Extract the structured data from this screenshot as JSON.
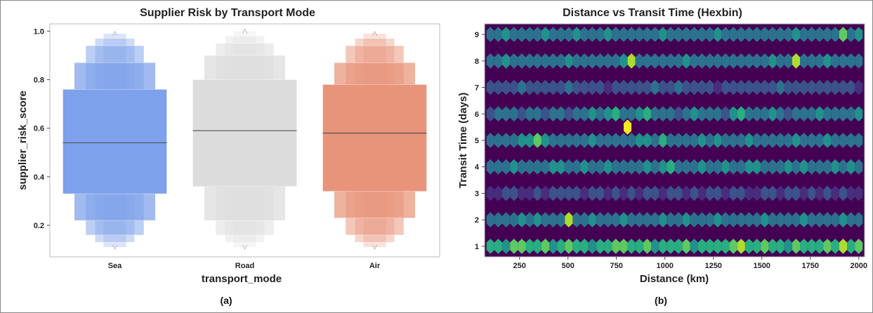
{
  "figure": {
    "captions": [
      "(a)",
      "(b)"
    ]
  },
  "chart_data": [
    {
      "type": "boxen",
      "title": "Supplier Risk by Transport Mode",
      "xlabel": "transport_mode",
      "ylabel": "supplier_risk_score",
      "ylim": [
        0.07,
        1.03
      ],
      "yticks": [
        0.2,
        0.4,
        0.6,
        0.8,
        1.0
      ],
      "ytick_labels": [
        "0.2",
        "0.4",
        "0.6",
        "0.8",
        "1.0"
      ],
      "categories": [
        "Sea",
        "Road",
        "Air"
      ],
      "colors": [
        "#7da1ea",
        "#dcdcdc",
        "#e8947a"
      ],
      "grid": false,
      "series": [
        {
          "category": "Sea",
          "median": 0.54,
          "levels": [
            {
              "lower": 0.33,
              "upper": 0.76
            },
            {
              "lower": 0.22,
              "upper": 0.87
            },
            {
              "lower": 0.16,
              "upper": 0.94
            },
            {
              "lower": 0.13,
              "upper": 0.97
            },
            {
              "lower": 0.11,
              "upper": 0.99
            }
          ]
        },
        {
          "category": "Road",
          "median": 0.59,
          "levels": [
            {
              "lower": 0.36,
              "upper": 0.8
            },
            {
              "lower": 0.22,
              "upper": 0.9
            },
            {
              "lower": 0.16,
              "upper": 0.95
            },
            {
              "lower": 0.13,
              "upper": 0.98
            },
            {
              "lower": 0.11,
              "upper": 1.0
            }
          ]
        },
        {
          "category": "Air",
          "median": 0.58,
          "levels": [
            {
              "lower": 0.34,
              "upper": 0.78
            },
            {
              "lower": 0.23,
              "upper": 0.87
            },
            {
              "lower": 0.16,
              "upper": 0.94
            },
            {
              "lower": 0.13,
              "upper": 0.97
            },
            {
              "lower": 0.11,
              "upper": 0.99
            }
          ]
        }
      ]
    },
    {
      "type": "heatmap",
      "subtype": "hexbin",
      "title": "Distance vs Transit Time (Hexbin)",
      "xlabel": "Distance (km)",
      "ylabel": "Transit Time (days)",
      "xlim": [
        70,
        2030
      ],
      "ylim": [
        0.6,
        9.4
      ],
      "xticks": [
        250,
        500,
        750,
        1000,
        1250,
        1500,
        1750,
        2000
      ],
      "xtick_labels": [
        "250",
        "500",
        "750",
        "1000",
        "1250",
        "1500",
        "1750",
        "2000"
      ],
      "yticks": [
        1,
        2,
        3,
        4,
        5,
        6,
        7,
        8,
        9
      ],
      "ytick_labels": [
        "1",
        "2",
        "3",
        "4",
        "5",
        "6",
        "7",
        "8",
        "9"
      ],
      "x_range": [
        100,
        2000
      ],
      "colormap": "viridis",
      "background_color": "#440154",
      "row_transit_days": [
        1,
        1.5,
        2,
        2.5,
        3,
        3.5,
        4,
        4.5,
        5,
        5.5,
        6,
        6.5,
        7,
        7.5,
        8,
        8.5,
        9
      ],
      "row_intensity": [
        [
          5,
          5,
          4,
          6,
          6,
          5,
          5,
          6,
          4,
          5,
          6,
          5,
          5,
          4,
          5,
          5,
          6,
          6,
          5,
          5,
          6,
          4,
          5,
          5,
          5,
          6,
          4,
          5,
          5,
          5,
          5,
          6,
          7,
          5,
          5,
          6,
          5,
          5,
          4,
          6,
          5,
          5,
          5,
          6,
          5,
          7,
          5,
          6
        ],
        [
          0,
          0,
          0,
          0,
          0,
          0,
          0,
          0,
          0,
          0,
          0,
          0,
          0,
          0,
          0,
          0,
          0,
          0,
          0,
          0,
          0,
          0,
          0,
          0,
          0,
          0,
          0,
          0,
          0,
          0,
          0,
          0,
          0,
          0,
          0,
          0,
          0,
          0,
          0,
          0,
          0,
          0,
          0,
          0,
          0,
          0,
          0,
          0
        ],
        [
          3,
          3,
          3,
          3,
          4,
          3,
          4,
          3,
          3,
          3,
          7,
          3,
          3,
          4,
          3,
          3,
          3,
          4,
          3,
          3,
          3,
          3,
          4,
          3,
          3,
          4,
          3,
          3,
          3,
          4,
          3,
          3,
          3,
          3,
          3,
          4,
          3,
          3,
          3,
          3,
          4,
          3,
          3,
          3,
          3,
          4,
          3,
          3
        ],
        [
          0,
          0,
          0,
          0,
          0,
          0,
          0,
          0,
          0,
          0,
          0,
          0,
          0,
          0,
          0,
          0,
          0,
          0,
          0,
          0,
          0,
          0,
          0,
          0,
          0,
          0,
          0,
          0,
          0,
          0,
          0,
          0,
          0,
          0,
          0,
          0,
          0,
          0,
          0,
          0,
          0,
          0,
          0,
          0,
          0,
          0,
          0,
          0
        ],
        [
          1,
          1,
          2,
          2,
          1,
          1,
          2,
          1,
          2,
          2,
          2,
          2,
          1,
          2,
          2,
          1,
          2,
          1,
          2,
          1,
          2,
          2,
          1,
          2,
          2,
          1,
          2,
          1,
          2,
          2,
          1,
          2,
          2,
          1,
          1,
          2,
          2,
          1,
          2,
          2,
          1,
          2,
          1,
          2,
          1,
          2,
          1,
          1
        ],
        [
          0,
          0,
          0,
          0,
          0,
          0,
          0,
          0,
          0,
          0,
          0,
          0,
          0,
          0,
          0,
          0,
          0,
          0,
          0,
          0,
          0,
          0,
          0,
          0,
          0,
          0,
          0,
          0,
          0,
          0,
          0,
          0,
          0,
          0,
          0,
          0,
          0,
          0,
          0,
          0,
          0,
          0,
          0,
          0,
          0,
          0,
          0,
          0
        ],
        [
          3,
          3,
          3,
          4,
          3,
          3,
          3,
          3,
          4,
          4,
          3,
          3,
          4,
          3,
          3,
          4,
          3,
          3,
          3,
          3,
          4,
          3,
          4,
          5,
          3,
          3,
          3,
          4,
          3,
          3,
          4,
          3,
          3,
          4,
          4,
          3,
          3,
          3,
          4,
          3,
          4,
          3,
          3,
          3,
          4,
          3,
          4,
          3
        ],
        [
          0,
          0,
          0,
          0,
          0,
          0,
          0,
          0,
          0,
          0,
          0,
          0,
          0,
          0,
          0,
          0,
          0,
          0,
          0,
          0,
          0,
          0,
          0,
          0,
          0,
          0,
          0,
          0,
          0,
          0,
          0,
          0,
          0,
          0,
          0,
          0,
          0,
          0,
          0,
          0,
          0,
          0,
          0,
          0,
          0,
          0,
          0,
          0
        ],
        [
          3,
          3,
          3,
          3,
          4,
          4,
          6,
          4,
          3,
          3,
          3,
          3,
          3,
          4,
          3,
          3,
          3,
          3,
          3,
          4,
          4,
          3,
          5,
          3,
          3,
          3,
          3,
          4,
          3,
          4,
          3,
          3,
          3,
          4,
          3,
          3,
          3,
          3,
          3,
          4,
          3,
          3,
          3,
          4,
          3,
          3,
          3,
          3
        ],
        [
          0,
          0,
          0,
          0,
          0,
          0,
          0,
          0,
          0,
          0,
          0,
          0,
          0,
          0,
          0,
          0,
          0,
          8,
          0,
          0,
          0,
          0,
          0,
          0,
          0,
          0,
          0,
          0,
          0,
          0,
          0,
          0,
          0,
          0,
          0,
          0,
          0,
          0,
          0,
          0,
          0,
          0,
          0,
          0,
          0,
          0,
          0,
          0
        ],
        [
          2,
          3,
          3,
          3,
          2,
          3,
          3,
          2,
          3,
          3,
          2,
          3,
          3,
          4,
          3,
          4,
          5,
          3,
          3,
          4,
          5,
          3,
          3,
          3,
          2,
          3,
          4,
          3,
          3,
          3,
          2,
          4,
          5,
          3,
          3,
          3,
          4,
          3,
          2,
          3,
          3,
          3,
          4,
          3,
          3,
          3,
          3,
          4
        ],
        [
          0,
          0,
          0,
          0,
          0,
          0,
          0,
          0,
          0,
          0,
          0,
          0,
          0,
          0,
          0,
          0,
          0,
          0,
          0,
          0,
          0,
          0,
          0,
          0,
          0,
          0,
          0,
          0,
          0,
          0,
          0,
          0,
          0,
          0,
          0,
          0,
          0,
          0,
          0,
          0,
          0,
          0,
          0,
          0,
          0,
          0,
          0,
          0
        ],
        [
          2,
          2,
          2,
          2,
          3,
          2,
          2,
          2,
          2,
          2,
          3,
          2,
          2,
          2,
          2,
          1,
          2,
          2,
          2,
          2,
          2,
          3,
          2,
          2,
          3,
          2,
          2,
          2,
          2,
          1,
          2,
          2,
          2,
          2,
          2,
          2,
          2,
          3,
          2,
          2,
          2,
          2,
          2,
          2,
          2,
          2,
          2,
          1
        ],
        [
          0,
          0,
          0,
          0,
          0,
          0,
          0,
          0,
          0,
          0,
          0,
          0,
          0,
          0,
          0,
          0,
          0,
          0,
          0,
          0,
          0,
          0,
          0,
          0,
          0,
          0,
          0,
          0,
          0,
          0,
          0,
          0,
          0,
          0,
          0,
          0,
          0,
          0,
          0,
          0,
          0,
          0,
          0,
          0,
          0,
          0,
          0,
          0
        ],
        [
          3,
          3,
          4,
          3,
          3,
          3,
          3,
          3,
          3,
          3,
          4,
          3,
          3,
          3,
          3,
          3,
          3,
          4,
          7,
          3,
          3,
          3,
          3,
          3,
          3,
          4,
          3,
          3,
          3,
          3,
          3,
          3,
          3,
          3,
          3,
          3,
          4,
          3,
          3,
          7,
          3,
          3,
          3,
          4,
          3,
          3,
          3,
          3
        ],
        [
          0,
          0,
          0,
          0,
          0,
          0,
          0,
          0,
          0,
          0,
          0,
          0,
          0,
          0,
          0,
          0,
          0,
          0,
          0,
          0,
          0,
          0,
          0,
          0,
          0,
          0,
          0,
          0,
          0,
          0,
          0,
          0,
          0,
          0,
          0,
          0,
          0,
          0,
          0,
          0,
          0,
          0,
          0,
          0,
          0,
          0,
          0,
          0
        ],
        [
          3,
          3,
          4,
          3,
          3,
          3,
          3,
          4,
          3,
          3,
          3,
          4,
          3,
          3,
          3,
          4,
          3,
          3,
          3,
          3,
          3,
          3,
          4,
          3,
          3,
          3,
          3,
          3,
          3,
          4,
          3,
          3,
          3,
          3,
          3,
          3,
          3,
          3,
          3,
          4,
          3,
          3,
          3,
          3,
          3,
          6,
          3,
          4
        ]
      ]
    }
  ]
}
